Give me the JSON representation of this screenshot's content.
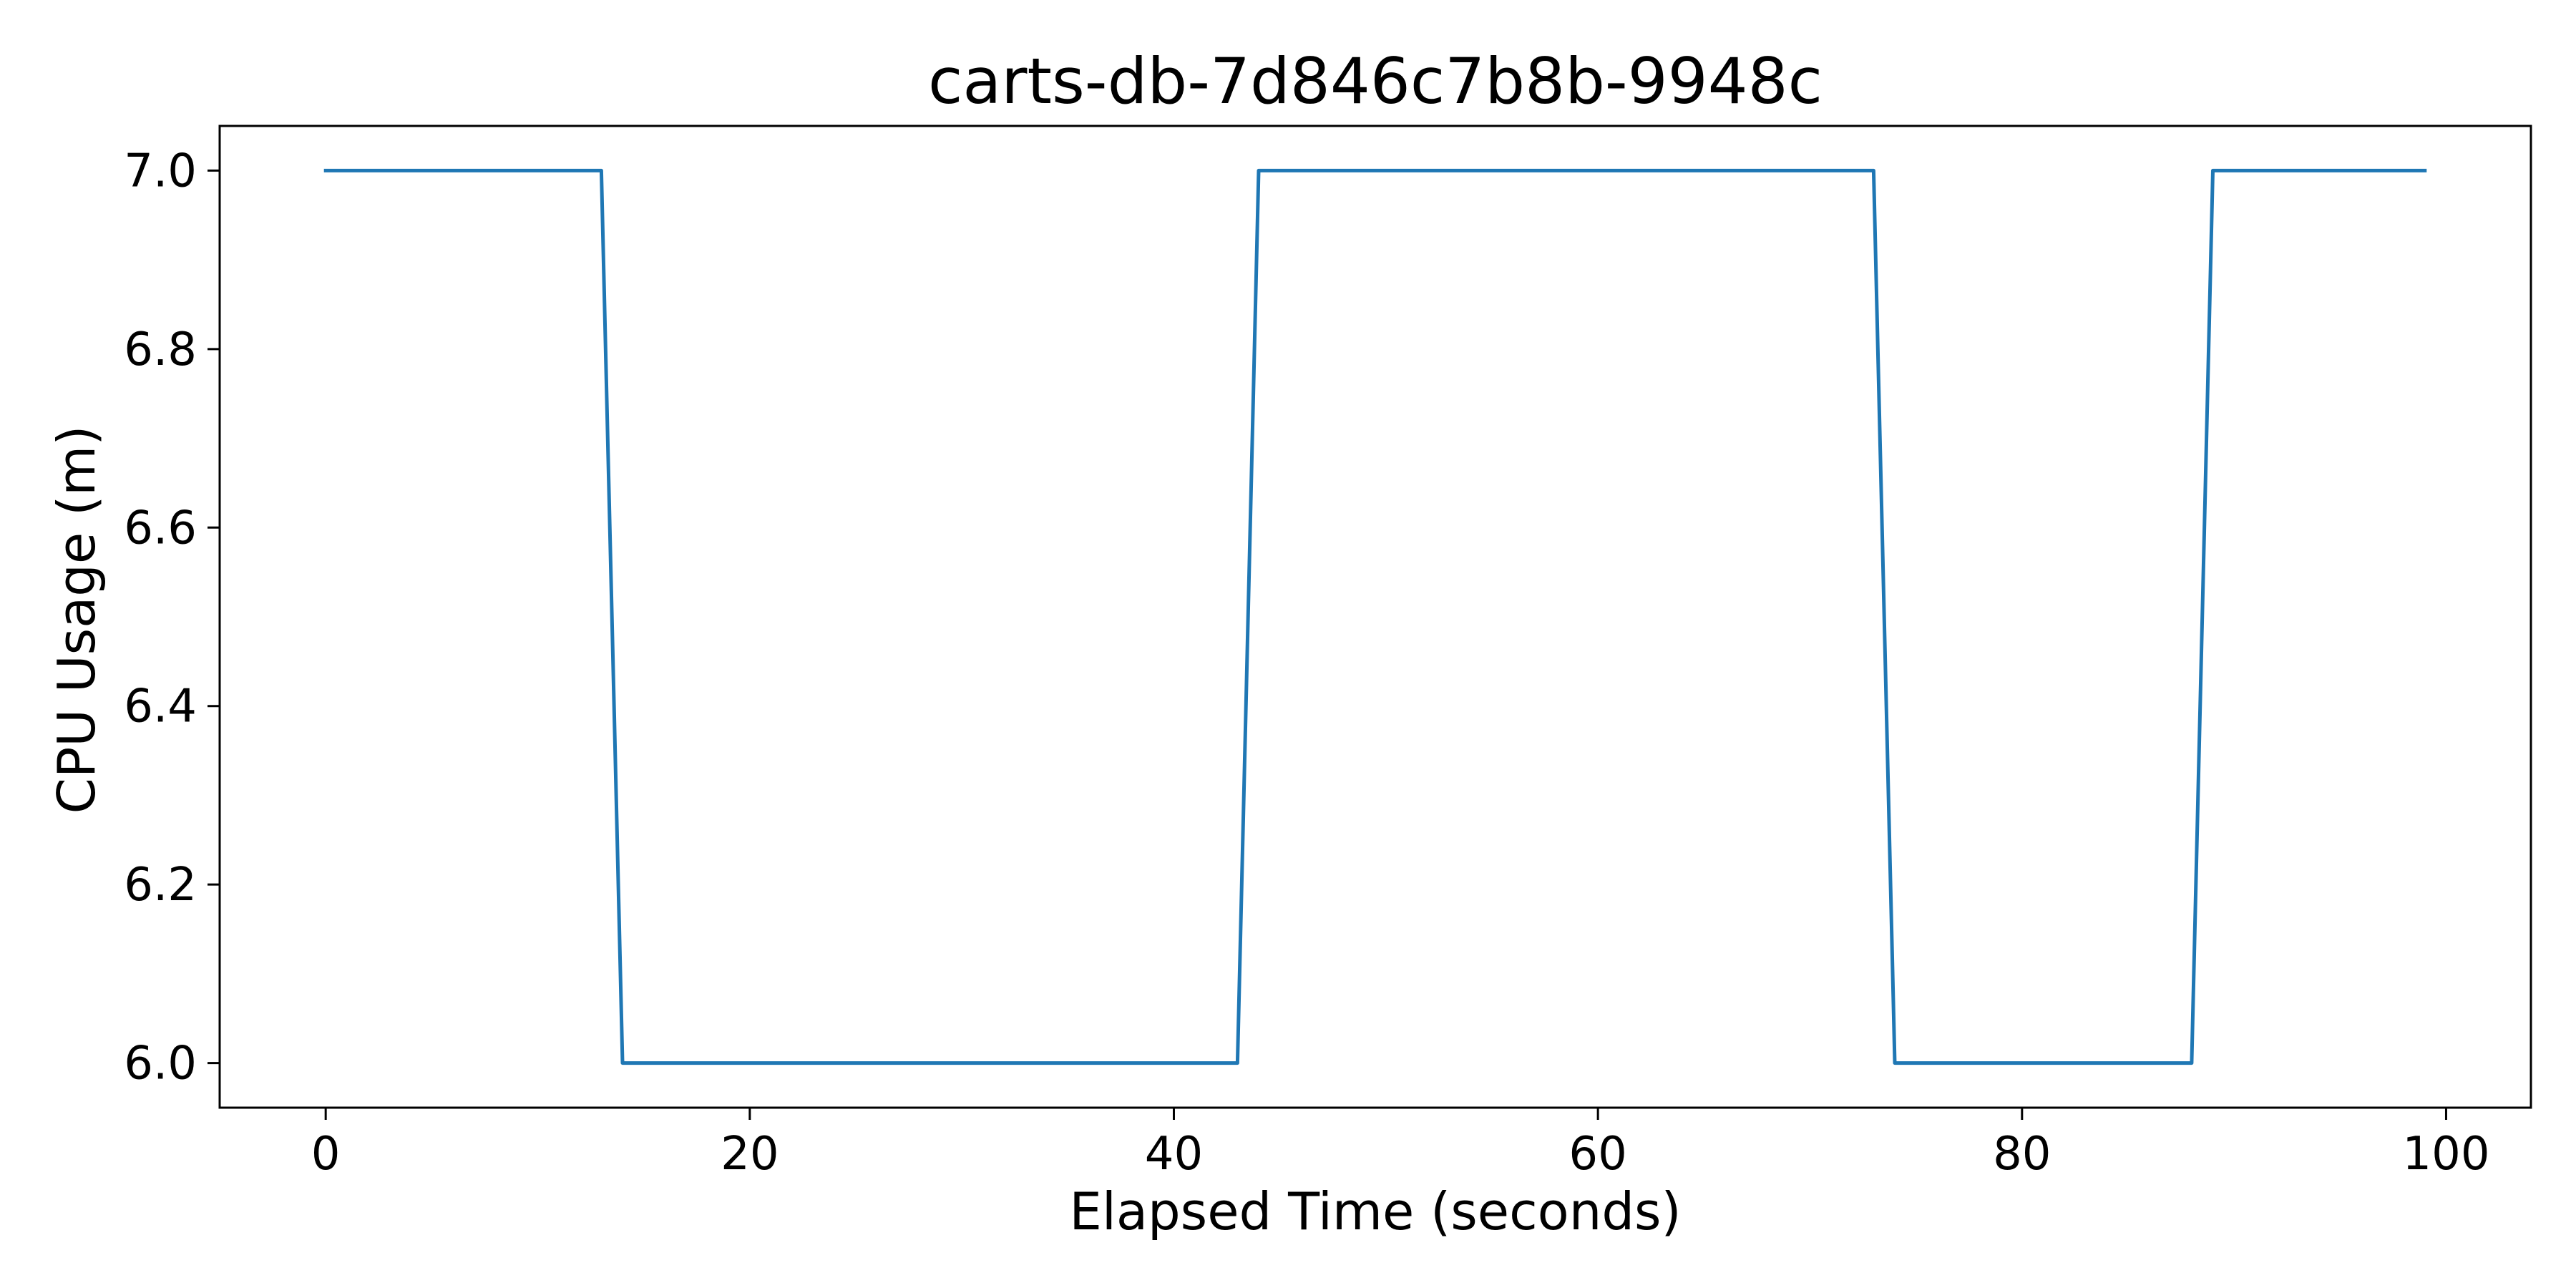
{
  "chart_data": {
    "type": "line",
    "title": "carts-db-7d846c7b8b-9948c",
    "xlabel": "Elapsed Time (seconds)",
    "ylabel": "CPU Usage (m)",
    "xlim": [
      -5,
      104
    ],
    "ylim": [
      5.95,
      7.05
    ],
    "xticks": [
      0,
      20,
      40,
      60,
      80,
      100
    ],
    "yticks": [
      6.0,
      6.2,
      6.4,
      6.6,
      6.8,
      7.0
    ],
    "ytick_labels": [
      "6.0",
      "6.2",
      "6.4",
      "6.6",
      "6.8",
      "7.0"
    ],
    "grid": false,
    "series": [
      {
        "color": "#1f77b4",
        "x": [
          0,
          13,
          14,
          43,
          44,
          73,
          74,
          88,
          89,
          99
        ],
        "y": [
          7,
          7,
          6,
          6,
          7,
          7,
          6,
          6,
          7,
          7
        ]
      }
    ]
  }
}
